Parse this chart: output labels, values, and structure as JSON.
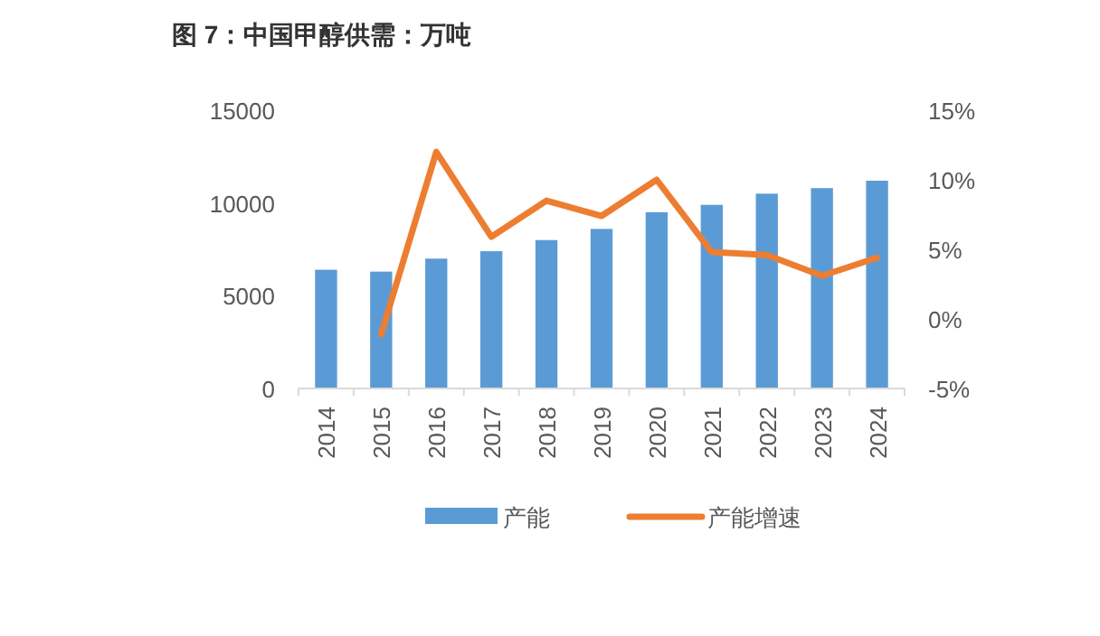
{
  "chart_data": {
    "type": "bar",
    "title": "图 7：中国甲醇供需：万吨",
    "categories": [
      "2014",
      "2015",
      "2016",
      "2017",
      "2018",
      "2019",
      "2020",
      "2021",
      "2022",
      "2023",
      "2024"
    ],
    "series": [
      {
        "name": "产能",
        "color": "#5b9bd5",
        "values": [
          6400,
          6300,
          7000,
          7400,
          8000,
          8600,
          9500,
          9900,
          10500,
          10800,
          11200
        ]
      },
      {
        "name": "产能增速",
        "type": "line",
        "axis": "y2",
        "color": "#ed7d31",
        "values": [
          null,
          -1.1,
          12.0,
          5.9,
          8.5,
          7.4,
          10.0,
          4.8,
          4.6,
          3.1,
          4.4
        ]
      }
    ],
    "ylim": [
      0,
      15000
    ],
    "yticks": [
      0,
      5000,
      10000,
      15000
    ],
    "y2lim": [
      -5,
      15
    ],
    "y2ticks": [
      {
        "value": -5,
        "label": "-5%"
      },
      {
        "value": 0,
        "label": "0%"
      },
      {
        "value": 5,
        "label": "5%"
      },
      {
        "value": 10,
        "label": "10%"
      },
      {
        "value": 15,
        "label": "15%"
      }
    ],
    "legend": "bottom",
    "grid": false
  }
}
